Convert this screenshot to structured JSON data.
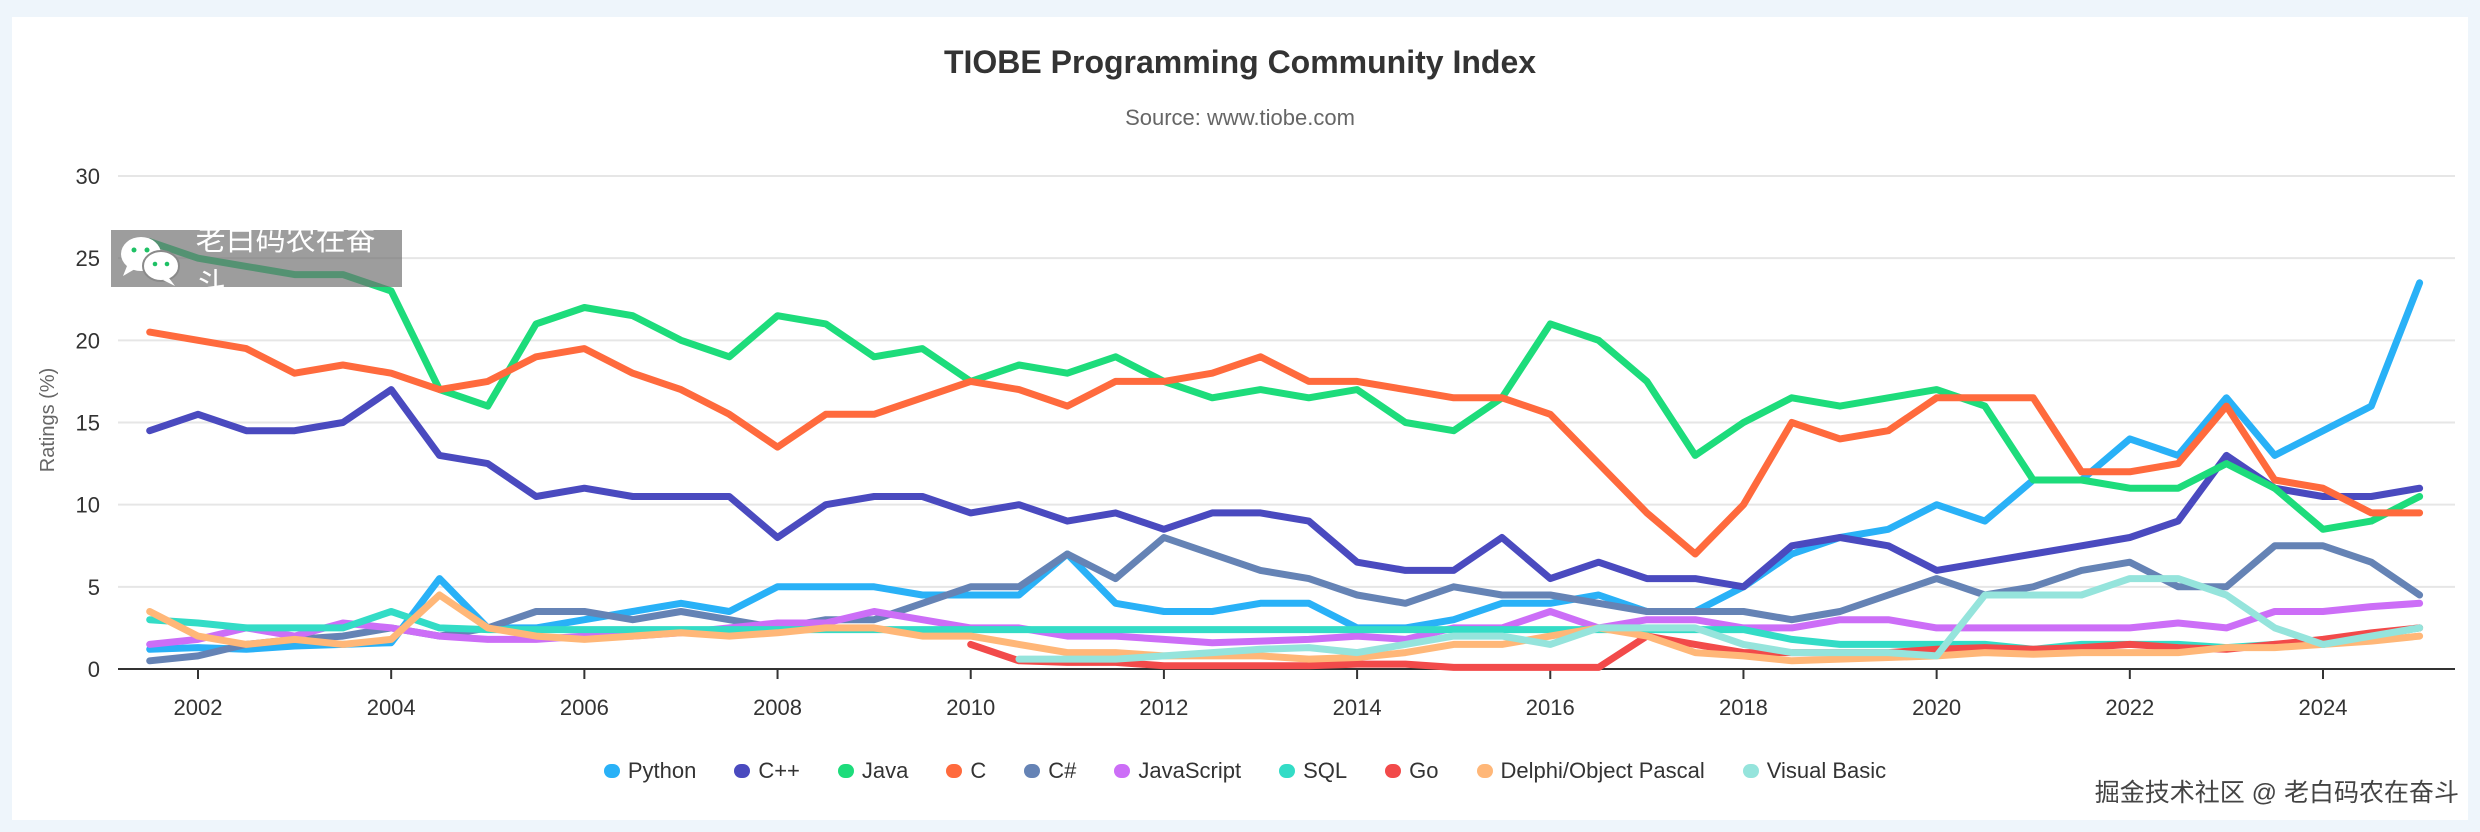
{
  "chart_data": {
    "type": "line",
    "title": "TIOBE Programming Community Index",
    "subtitle": "Source: www.tiobe.com",
    "xlabel": "",
    "ylabel": "Ratings (%)",
    "ylim": [
      0,
      30
    ],
    "yticks": [
      0,
      5,
      10,
      15,
      20,
      25,
      30
    ],
    "xticks": [
      "2002",
      "2004",
      "2006",
      "2008",
      "2010",
      "2012",
      "2014",
      "2016",
      "2018",
      "2020",
      "2022",
      "2024"
    ],
    "grid": true,
    "legend": "bottom",
    "x": [
      "2001-07",
      "2002-01",
      "2002-07",
      "2003-01",
      "2003-07",
      "2004-01",
      "2004-07",
      "2005-01",
      "2005-07",
      "2006-01",
      "2006-07",
      "2007-01",
      "2007-07",
      "2008-01",
      "2008-07",
      "2009-01",
      "2009-07",
      "2010-01",
      "2010-07",
      "2011-01",
      "2011-07",
      "2012-01",
      "2012-07",
      "2013-01",
      "2013-07",
      "2014-01",
      "2014-07",
      "2015-01",
      "2015-07",
      "2016-01",
      "2016-07",
      "2017-01",
      "2017-07",
      "2018-01",
      "2018-07",
      "2019-01",
      "2019-07",
      "2020-01",
      "2020-07",
      "2021-01",
      "2021-07",
      "2022-01",
      "2022-07",
      "2023-01",
      "2023-07",
      "2024-01",
      "2024-07",
      "2025-01"
    ],
    "series": [
      {
        "name": "Python",
        "color": "#29b1f7",
        "values": [
          1.2,
          1.3,
          1.2,
          1.4,
          1.5,
          1.6,
          5.5,
          2.5,
          2.5,
          3,
          3.5,
          4,
          3.5,
          5,
          5,
          5,
          4.5,
          4.5,
          4.5,
          7,
          4,
          3.5,
          3.5,
          4,
          4,
          2.5,
          2.5,
          3,
          4,
          4,
          4.5,
          3.5,
          3.5,
          5,
          7,
          8,
          8.5,
          10,
          9,
          11.5,
          11.5,
          14,
          13,
          16.5,
          13,
          14.5,
          16,
          23.5
        ]
      },
      {
        "name": "C++",
        "color": "#4a4abf",
        "values": [
          14.5,
          15.5,
          14.5,
          14.5,
          15,
          17,
          13,
          12.5,
          10.5,
          11,
          10.5,
          10.5,
          10.5,
          8,
          10,
          10.5,
          10.5,
          9.5,
          10,
          9,
          9.5,
          8.5,
          9.5,
          9.5,
          9,
          6.5,
          6,
          6,
          8,
          5.5,
          6.5,
          5.5,
          5.5,
          5,
          7.5,
          8,
          7.5,
          6,
          6.5,
          7,
          7.5,
          8,
          9,
          13,
          11,
          10.5,
          10.5,
          11
        ]
      },
      {
        "name": "Java",
        "color": "#1ddc7b",
        "values": [
          26,
          25,
          24.5,
          24,
          24,
          23,
          17,
          16,
          21,
          22,
          21.5,
          20,
          19,
          21.5,
          21,
          19,
          19.5,
          17.5,
          18.5,
          18,
          19,
          17.5,
          16.5,
          17,
          16.5,
          17,
          15,
          14.5,
          16.5,
          21,
          20,
          17.5,
          13,
          15,
          16.5,
          16,
          16.5,
          17,
          16,
          11.5,
          11.5,
          11,
          11,
          12.5,
          11,
          8.5,
          9,
          10.5
        ]
      },
      {
        "name": "C",
        "color": "#ff6a3d",
        "values": [
          20.5,
          20,
          19.5,
          18,
          18.5,
          18,
          17,
          17.5,
          19,
          19.5,
          18,
          17,
          15.5,
          13.5,
          15.5,
          15.5,
          16.5,
          17.5,
          17,
          16,
          17.5,
          17.5,
          18,
          19,
          17.5,
          17.5,
          17,
          16.5,
          16.5,
          15.5,
          12.5,
          9.5,
          7,
          10,
          15,
          14,
          14.5,
          16.5,
          16.5,
          16.5,
          12,
          12,
          12.5,
          16,
          11.5,
          11,
          9.5,
          9.5
        ]
      },
      {
        "name": "C#",
        "color": "#6583b5",
        "values": [
          0.5,
          0.8,
          1.5,
          1.8,
          2,
          2.5,
          2,
          2.5,
          3.5,
          3.5,
          3,
          3.5,
          3,
          2.5,
          3,
          3,
          4,
          5,
          5,
          7,
          5.5,
          8,
          7,
          6,
          5.5,
          4.5,
          4,
          5,
          4.5,
          4.5,
          4,
          3.5,
          3.5,
          3.5,
          3,
          3.5,
          4.5,
          5.5,
          4.5,
          5,
          6,
          6.5,
          5,
          5,
          7.5,
          7.5,
          6.5,
          4.5
        ]
      },
      {
        "name": "JavaScript",
        "color": "#cc6ef7",
        "values": [
          1.5,
          1.8,
          2.5,
          2,
          2.8,
          2.5,
          2,
          1.8,
          1.8,
          2,
          2,
          2.2,
          2.5,
          2.8,
          2.8,
          3.5,
          3,
          2.5,
          2.5,
          2,
          2,
          1.8,
          1.6,
          1.7,
          1.8,
          2,
          1.8,
          2.5,
          2.5,
          3.5,
          2.5,
          3,
          3,
          2.5,
          2.5,
          3,
          3,
          2.5,
          2.5,
          2.5,
          2.5,
          2.5,
          2.8,
          2.5,
          3.5,
          3.5,
          3.8,
          4
        ]
      },
      {
        "name": "SQL",
        "color": "#33dcc6",
        "values": [
          3,
          2.8,
          2.5,
          2.5,
          2.5,
          3.5,
          2.5,
          2.4,
          2.4,
          2.4,
          2.4,
          2.4,
          2.4,
          2.4,
          2.4,
          2.4,
          2.4,
          2.4,
          2.4,
          2.4,
          2.4,
          2.4,
          2.4,
          2.4,
          2.4,
          2.4,
          2.4,
          2.4,
          2.4,
          2.4,
          2.4,
          2.4,
          2.4,
          2.4,
          1.8,
          1.5,
          1.5,
          1.5,
          1.5,
          1.2,
          1.5,
          1.5,
          1.5,
          1.3,
          1.5,
          1.5,
          2,
          2.5
        ]
      },
      {
        "name": "Go",
        "color": "#f24a4a",
        "values": [
          null,
          null,
          null,
          null,
          null,
          null,
          null,
          null,
          null,
          null,
          null,
          null,
          null,
          null,
          null,
          null,
          null,
          1.5,
          0.5,
          0.4,
          0.4,
          0.2,
          0.2,
          0.2,
          0.2,
          0.3,
          0.3,
          0.1,
          0.1,
          0.1,
          0.1,
          2,
          1.5,
          1,
          1,
          1,
          1,
          1.2,
          1.3,
          1.2,
          1.3,
          1.5,
          1.3,
          1.2,
          1.5,
          1.8,
          2.2,
          2.5
        ]
      },
      {
        "name": "Delphi/Object Pascal",
        "color": "#ffb778",
        "values": [
          3.5,
          2,
          1.5,
          1.8,
          1.5,
          1.8,
          4.5,
          2.5,
          2,
          1.8,
          2,
          2.2,
          2,
          2.2,
          2.5,
          2.5,
          2,
          2,
          1.5,
          1,
          1,
          0.8,
          0.8,
          0.8,
          0.6,
          0.7,
          1,
          1.5,
          1.5,
          2,
          2.5,
          2,
          1,
          0.8,
          0.5,
          0.6,
          0.7,
          0.8,
          1,
          0.9,
          1,
          1,
          1,
          1.3,
          1.3,
          1.5,
          1.7,
          2
        ]
      },
      {
        "name": "Visual Basic",
        "color": "#95e4dc",
        "values": [
          null,
          null,
          null,
          null,
          null,
          null,
          null,
          null,
          null,
          null,
          null,
          null,
          null,
          null,
          null,
          null,
          null,
          null,
          0.6,
          0.6,
          0.6,
          0.8,
          1,
          1.2,
          1.3,
          1,
          1.5,
          2,
          2,
          1.5,
          2.5,
          2.5,
          2.5,
          1.5,
          1,
          1,
          1,
          0.8,
          4.5,
          4.5,
          4.5,
          5.5,
          5.5,
          4.5,
          2.5,
          1.5,
          2,
          2.5
        ]
      }
    ]
  },
  "watermarks": {
    "wechat_text": "老白码农在奋斗",
    "footer": "掘金技术社区 @ 老白码农在奋斗"
  }
}
